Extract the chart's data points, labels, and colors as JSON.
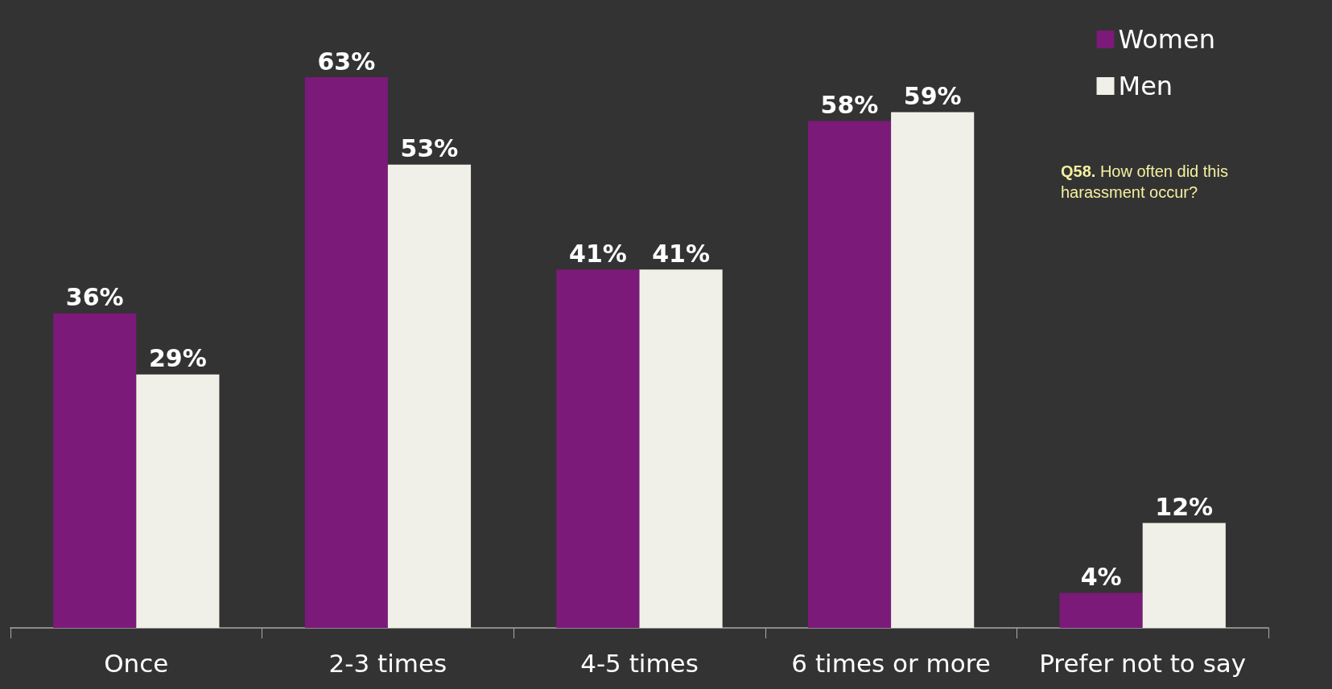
{
  "chart_data": {
    "type": "bar",
    "categories": [
      "Once",
      "2-3 times",
      "4-5 times",
      "6 times or more",
      "Prefer not to say"
    ],
    "series": [
      {
        "name": "Women",
        "color": "#7b1a78",
        "values": [
          36,
          63,
          41,
          58,
          4
        ],
        "value_labels": [
          "36%",
          "63%",
          "41%",
          "58%",
          "4%"
        ]
      },
      {
        "name": "Men",
        "color": "#f1f0e8",
        "values": [
          29,
          53,
          41,
          59,
          12
        ],
        "value_labels": [
          "29%",
          "53%",
          "41%",
          "59%",
          "12%"
        ]
      }
    ],
    "legend": "top right",
    "grid": false,
    "annotations": [
      "Q58. How often did this harassment occur?"
    ]
  }
}
